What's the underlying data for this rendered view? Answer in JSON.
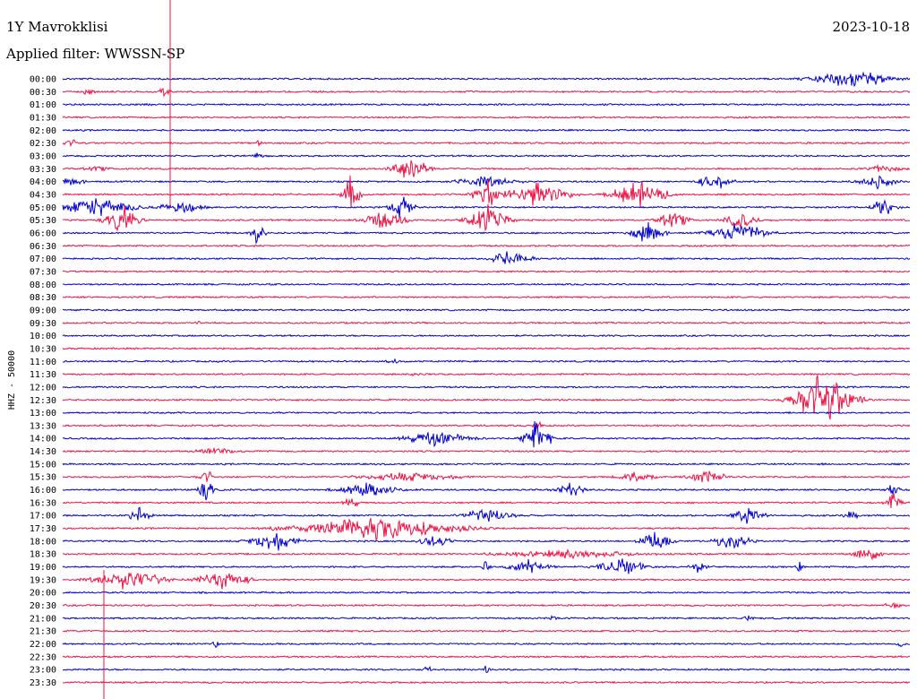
{
  "header": {
    "station": "1Y Mavrokklisi",
    "date": "2023-10-18",
    "filter": "Applied filter: WWSSN-SP"
  },
  "chart_data": {
    "type": "helicorder",
    "channel_label": "HHZ - 50000",
    "trace_colors": [
      "#0000cc",
      "#ee1144"
    ],
    "marker_color": "#ee1144",
    "row_labels": [
      "00:00",
      "00:30",
      "01:00",
      "01:30",
      "02:00",
      "02:30",
      "03:00",
      "03:30",
      "04:00",
      "04:30",
      "05:00",
      "05:30",
      "06:00",
      "06:30",
      "07:00",
      "07:30",
      "08:00",
      "08:30",
      "09:00",
      "09:30",
      "10:00",
      "10:30",
      "11:00",
      "11:30",
      "12:00",
      "12:30",
      "13:00",
      "13:30",
      "14:00",
      "14:30",
      "15:00",
      "15:30",
      "16:00",
      "16:30",
      "17:00",
      "17:30",
      "18:00",
      "18:30",
      "19:00",
      "19:30",
      "20:00",
      "20:30",
      "21:00",
      "21:30",
      "22:00",
      "22:30",
      "23:00",
      "23:30"
    ],
    "events": [
      {
        "row": 0,
        "x": 0.93,
        "width": 0.1,
        "amplitude": 13
      },
      {
        "row": 1,
        "x": 0.03,
        "width": 0.02,
        "amplitude": 5
      },
      {
        "row": 1,
        "x": 0.12,
        "width": 0.02,
        "amplitude": 5
      },
      {
        "row": 2,
        "x": 0.1,
        "width": 0.02,
        "amplitude": 2
      },
      {
        "row": 5,
        "x": 0.01,
        "width": 0.04,
        "amplitude": 5
      },
      {
        "row": 5,
        "x": 0.23,
        "width": 0.01,
        "amplitude": 6
      },
      {
        "row": 6,
        "x": 0.23,
        "width": 0.02,
        "amplitude": 4
      },
      {
        "row": 7,
        "x": 0.04,
        "width": 0.04,
        "amplitude": 4
      },
      {
        "row": 7,
        "x": 0.41,
        "width": 0.04,
        "amplitude": 25
      },
      {
        "row": 7,
        "x": 0.97,
        "width": 0.05,
        "amplitude": 6
      },
      {
        "row": 8,
        "x": 0.01,
        "width": 0.04,
        "amplitude": 6
      },
      {
        "row": 8,
        "x": 0.5,
        "width": 0.08,
        "amplitude": 8
      },
      {
        "row": 8,
        "x": 0.77,
        "width": 0.04,
        "amplitude": 12
      },
      {
        "row": 8,
        "x": 0.96,
        "width": 0.05,
        "amplitude": 10
      },
      {
        "row": 9,
        "x": 0.34,
        "width": 0.02,
        "amplitude": 25
      },
      {
        "row": 9,
        "x": 0.5,
        "width": 0.03,
        "amplitude": 20
      },
      {
        "row": 9,
        "x": 0.56,
        "width": 0.08,
        "amplitude": 18
      },
      {
        "row": 9,
        "x": 0.68,
        "width": 0.07,
        "amplitude": 18
      },
      {
        "row": 10,
        "x": 0.04,
        "width": 0.1,
        "amplitude": 14
      },
      {
        "row": 10,
        "x": 0.14,
        "width": 0.06,
        "amplitude": 8
      },
      {
        "row": 10,
        "x": 0.4,
        "width": 0.03,
        "amplitude": 16
      },
      {
        "row": 10,
        "x": 0.97,
        "width": 0.03,
        "amplitude": 14
      },
      {
        "row": 11,
        "x": 0.07,
        "width": 0.04,
        "amplitude": 20
      },
      {
        "row": 11,
        "x": 0.38,
        "width": 0.05,
        "amplitude": 15
      },
      {
        "row": 11,
        "x": 0.5,
        "width": 0.05,
        "amplitude": 22
      },
      {
        "row": 11,
        "x": 0.72,
        "width": 0.04,
        "amplitude": 12
      },
      {
        "row": 11,
        "x": 0.8,
        "width": 0.04,
        "amplitude": 12
      },
      {
        "row": 12,
        "x": 0.23,
        "width": 0.02,
        "amplitude": 14
      },
      {
        "row": 12,
        "x": 0.69,
        "width": 0.04,
        "amplitude": 16
      },
      {
        "row": 12,
        "x": 0.8,
        "width": 0.07,
        "amplitude": 14
      },
      {
        "row": 14,
        "x": 0.53,
        "width": 0.05,
        "amplitude": 12
      },
      {
        "row": 19,
        "x": 0.16,
        "width": 0.01,
        "amplitude": 4
      },
      {
        "row": 22,
        "x": 0.39,
        "width": 0.02,
        "amplitude": 4
      },
      {
        "row": 23,
        "x": 0.42,
        "width": 0.02,
        "amplitude": 4
      },
      {
        "row": 25,
        "x": 0.9,
        "width": 0.07,
        "amplitude": 42
      },
      {
        "row": 27,
        "x": 0.56,
        "width": 0.01,
        "amplitude": 12
      },
      {
        "row": 28,
        "x": 0.44,
        "width": 0.09,
        "amplitude": 10
      },
      {
        "row": 28,
        "x": 0.56,
        "width": 0.03,
        "amplitude": 28
      },
      {
        "row": 29,
        "x": 0.18,
        "width": 0.06,
        "amplitude": 5
      },
      {
        "row": 31,
        "x": 0.17,
        "width": 0.02,
        "amplitude": 10
      },
      {
        "row": 31,
        "x": 0.41,
        "width": 0.15,
        "amplitude": 6
      },
      {
        "row": 31,
        "x": 0.68,
        "width": 0.05,
        "amplitude": 10
      },
      {
        "row": 31,
        "x": 0.76,
        "width": 0.05,
        "amplitude": 10
      },
      {
        "row": 32,
        "x": 0.17,
        "width": 0.02,
        "amplitude": 16
      },
      {
        "row": 32,
        "x": 0.36,
        "width": 0.08,
        "amplitude": 10
      },
      {
        "row": 32,
        "x": 0.6,
        "width": 0.04,
        "amplitude": 10
      },
      {
        "row": 32,
        "x": 0.98,
        "width": 0.02,
        "amplitude": 8
      },
      {
        "row": 33,
        "x": 0.34,
        "width": 0.02,
        "amplitude": 10
      },
      {
        "row": 33,
        "x": 0.98,
        "width": 0.02,
        "amplitude": 12
      },
      {
        "row": 34,
        "x": 0.09,
        "width": 0.03,
        "amplitude": 12
      },
      {
        "row": 34,
        "x": 0.5,
        "width": 0.06,
        "amplitude": 12
      },
      {
        "row": 34,
        "x": 0.81,
        "width": 0.04,
        "amplitude": 12
      },
      {
        "row": 34,
        "x": 0.93,
        "width": 0.02,
        "amplitude": 8
      },
      {
        "row": 35,
        "x": 0.37,
        "width": 0.2,
        "amplitude": 16
      },
      {
        "row": 36,
        "x": 0.25,
        "width": 0.06,
        "amplitude": 14
      },
      {
        "row": 36,
        "x": 0.44,
        "width": 0.04,
        "amplitude": 10
      },
      {
        "row": 36,
        "x": 0.7,
        "width": 0.04,
        "amplitude": 14
      },
      {
        "row": 36,
        "x": 0.79,
        "width": 0.05,
        "amplitude": 12
      },
      {
        "row": 37,
        "x": 0.6,
        "width": 0.2,
        "amplitude": 6
      },
      {
        "row": 37,
        "x": 0.95,
        "width": 0.03,
        "amplitude": 14
      },
      {
        "row": 38,
        "x": 0.5,
        "width": 0.01,
        "amplitude": 12
      },
      {
        "row": 38,
        "x": 0.55,
        "width": 0.05,
        "amplitude": 10
      },
      {
        "row": 38,
        "x": 0.66,
        "width": 0.06,
        "amplitude": 12
      },
      {
        "row": 38,
        "x": 0.75,
        "width": 0.02,
        "amplitude": 10
      },
      {
        "row": 38,
        "x": 0.87,
        "width": 0.01,
        "amplitude": 8
      },
      {
        "row": 39,
        "x": 0.08,
        "width": 0.09,
        "amplitude": 14
      },
      {
        "row": 39,
        "x": 0.19,
        "width": 0.06,
        "amplitude": 14
      },
      {
        "row": 41,
        "x": 0.98,
        "width": 0.03,
        "amplitude": 4
      },
      {
        "row": 42,
        "x": 0.58,
        "width": 0.01,
        "amplitude": 6
      },
      {
        "row": 42,
        "x": 0.81,
        "width": 0.02,
        "amplitude": 4
      },
      {
        "row": 44,
        "x": 0.18,
        "width": 0.01,
        "amplitude": 6
      },
      {
        "row": 44,
        "x": 0.99,
        "width": 0.01,
        "amplitude": 8
      },
      {
        "row": 46,
        "x": 0.43,
        "width": 0.01,
        "amplitude": 7
      },
      {
        "row": 46,
        "x": 0.5,
        "width": 0.01,
        "amplitude": 6
      }
    ]
  }
}
